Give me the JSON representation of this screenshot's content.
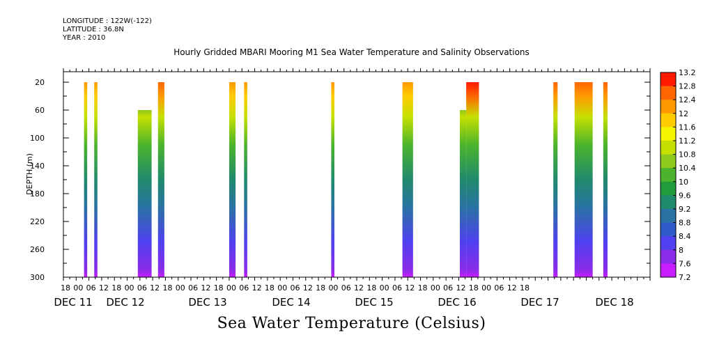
{
  "header": {
    "longitude": "LONGITUDE : 122W(-122)",
    "latitude": "LATITUDE : 36.8N",
    "year": "YEAR : 2010"
  },
  "chart_data": {
    "type": "heatmap",
    "title": "Hourly Gridded MBARI Mooring M1 Sea Water Temperature and Salinity Observations",
    "xlabel": "Sea Water Temperature (Celsius)",
    "ylabel": "DEPTH (m)",
    "ylim": [
      300,
      0
    ],
    "yticks": [
      20,
      60,
      100,
      140,
      180,
      220,
      260,
      300
    ],
    "x_hour_ticks": [
      "18",
      "00",
      "06",
      "12",
      "18",
      "00",
      "06",
      "12",
      "18",
      "00",
      "06",
      "12",
      "18",
      "00",
      "06",
      "12",
      "18",
      "00",
      "06",
      "12",
      "18",
      "00",
      "06",
      "12",
      "18",
      "00",
      "06",
      "12",
      "18",
      "00",
      "06",
      "12",
      "18",
      "00",
      "06",
      "12",
      "18"
    ],
    "date_labels": [
      "DEC 11",
      "DEC 12",
      "DEC 13",
      "DEC 14",
      "DEC 15",
      "DEC 16",
      "DEC 17",
      "DEC 18"
    ],
    "colorbar": {
      "min": 7.2,
      "max": 13.2,
      "step": 0.2,
      "labels": [
        "13.2",
        "12.8",
        "12.4",
        "12",
        "11.6",
        "11.2",
        "10.8",
        "10.4",
        "10",
        "9.6",
        "9.2",
        "8.8",
        "8.4",
        "8",
        "7.6",
        "7.2"
      ]
    },
    "observation_windows_hours_from_dec10_18": [
      {
        "start": 8.7,
        "end": 10.2,
        "top_depth": 20,
        "surface_temp": 12.0
      },
      {
        "start": 13.5,
        "end": 15.0,
        "top_depth": 20,
        "surface_temp": 12.2
      },
      {
        "start": 34.0,
        "end": 40.5,
        "top_depth": 60,
        "surface_temp": 11.0
      },
      {
        "start": 43.5,
        "end": 46.5,
        "top_depth": 20,
        "surface_temp": 12.6
      },
      {
        "start": 77.0,
        "end": 80.0,
        "top_depth": 20,
        "surface_temp": 12.2
      },
      {
        "start": 84.0,
        "end": 85.5,
        "top_depth": 20,
        "surface_temp": 12.0
      },
      {
        "start": 125.0,
        "end": 126.5,
        "top_depth": 20,
        "surface_temp": 12.0
      },
      {
        "start": 158.5,
        "end": 163.5,
        "top_depth": 20,
        "surface_temp": 12.2
      },
      {
        "start": 185.5,
        "end": 188.5,
        "top_depth": 60,
        "surface_temp": 11.2
      },
      {
        "start": 188.5,
        "end": 194.5,
        "top_depth": 20,
        "surface_temp": 12.8
      },
      {
        "start": 229.5,
        "end": 231.5,
        "top_depth": 20,
        "surface_temp": 12.6
      },
      {
        "start": 239.5,
        "end": 248.0,
        "top_depth": 20,
        "surface_temp": 12.4
      },
      {
        "start": 253.0,
        "end": 255.0,
        "top_depth": 20,
        "surface_temp": 12.4
      }
    ]
  }
}
